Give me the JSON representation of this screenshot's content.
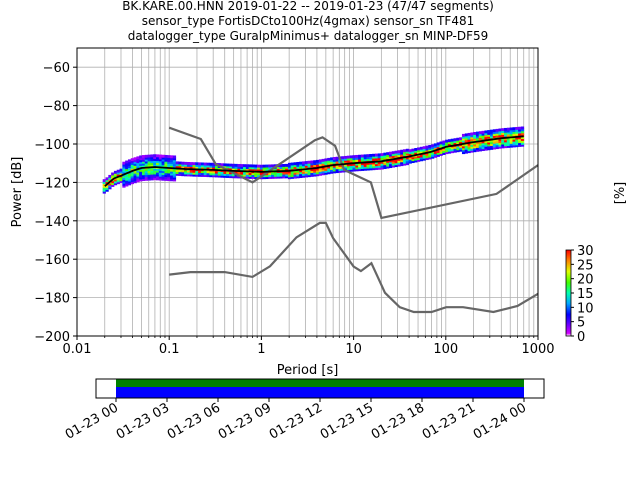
{
  "title_lines": [
    "BK.KARE.00.HNN   2019-01-22 -- 2019-01-23  (47/47 segments)",
    "sensor_type FortisDCto100Hz(4gmax) sensor_sn TF481",
    "datalogger_type GuralpMinimus+ datalogger_sn MINP-DF59"
  ],
  "chart_data": {
    "type": "line",
    "xlabel": "Period [s]",
    "ylabel": "Power [dB]",
    "xscale": "log",
    "xlim": [
      0.01,
      1000
    ],
    "ylim": [
      -200,
      -50
    ],
    "xtick_labels": [
      "0.01",
      "0.1",
      "1",
      "10",
      "100",
      "1000"
    ],
    "xticks": [
      0.01,
      0.1,
      1,
      10,
      100,
      1000
    ],
    "ytick_labels": [
      "−200",
      "−180",
      "−160",
      "−140",
      "−120",
      "−100",
      "−80",
      "−60"
    ],
    "yticks": [
      -200,
      -180,
      -160,
      -140,
      -120,
      -100,
      -80,
      -60
    ],
    "grid": true,
    "noise_models": [
      {
        "id": "nhnm",
        "color": "#666666",
        "points": [
          [
            0.1,
            -91.5
          ],
          [
            0.22,
            -97.4
          ],
          [
            0.32,
            -110.5
          ],
          [
            0.8,
            -120
          ],
          [
            3.8,
            -98
          ],
          [
            4.6,
            -96.5
          ],
          [
            6.3,
            -101
          ],
          [
            7.9,
            -113.5
          ],
          [
            15.4,
            -120
          ],
          [
            20,
            -138.5
          ],
          [
            354.8,
            -126
          ],
          [
            1000,
            -111
          ]
        ]
      },
      {
        "id": "nlnm",
        "color": "#666666",
        "points": [
          [
            0.1,
            -168
          ],
          [
            0.17,
            -166.7
          ],
          [
            0.4,
            -166.7
          ],
          [
            0.8,
            -169.2
          ],
          [
            1.24,
            -163.7
          ],
          [
            2.4,
            -148.6
          ],
          [
            4.3,
            -141.1
          ],
          [
            5,
            -141.1
          ],
          [
            6,
            -149
          ],
          [
            10,
            -163.8
          ],
          [
            12,
            -166.2
          ],
          [
            15.6,
            -162.1
          ],
          [
            21.9,
            -177.5
          ],
          [
            31.6,
            -185
          ],
          [
            45,
            -187.5
          ],
          [
            70,
            -187.5
          ],
          [
            101,
            -185
          ],
          [
            154,
            -185
          ],
          [
            328,
            -187.5
          ],
          [
            600,
            -184.4
          ],
          [
            1000,
            -178
          ]
        ]
      }
    ],
    "mode_curve": {
      "color": "#000000",
      "points": [
        [
          0.02,
          -122
        ],
        [
          0.025,
          -118
        ],
        [
          0.03,
          -116.5
        ],
        [
          0.04,
          -114
        ],
        [
          0.05,
          -112.5
        ],
        [
          0.07,
          -112
        ],
        [
          0.1,
          -112.5
        ],
        [
          0.15,
          -113
        ],
        [
          0.3,
          -113.5
        ],
        [
          0.5,
          -114
        ],
        [
          1,
          -114.5
        ],
        [
          2,
          -114
        ],
        [
          4,
          -112.5
        ],
        [
          6,
          -111
        ],
        [
          10,
          -110
        ],
        [
          20,
          -109
        ],
        [
          40,
          -106.5
        ],
        [
          70,
          -104
        ],
        [
          100,
          -101.5
        ],
        [
          200,
          -99
        ],
        [
          400,
          -97
        ],
        [
          700,
          -96
        ]
      ]
    },
    "colorbar": {
      "label": "[%]",
      "range": [
        0,
        30
      ],
      "tick_labels": [
        "0",
        "5",
        "10",
        "15",
        "20",
        "25",
        "30"
      ],
      "ticks": [
        0,
        5,
        10,
        15,
        20,
        25,
        30
      ]
    },
    "coverage": {
      "tick_labels": [
        "01-23 00",
        "01-23 03",
        "01-23 06",
        "01-23 09",
        "01-23 12",
        "01-23 15",
        "01-23 18",
        "01-23 21",
        "01-24 00"
      ],
      "bar_colors": {
        "top": "#008000",
        "bottom": "#0000ff"
      }
    }
  }
}
